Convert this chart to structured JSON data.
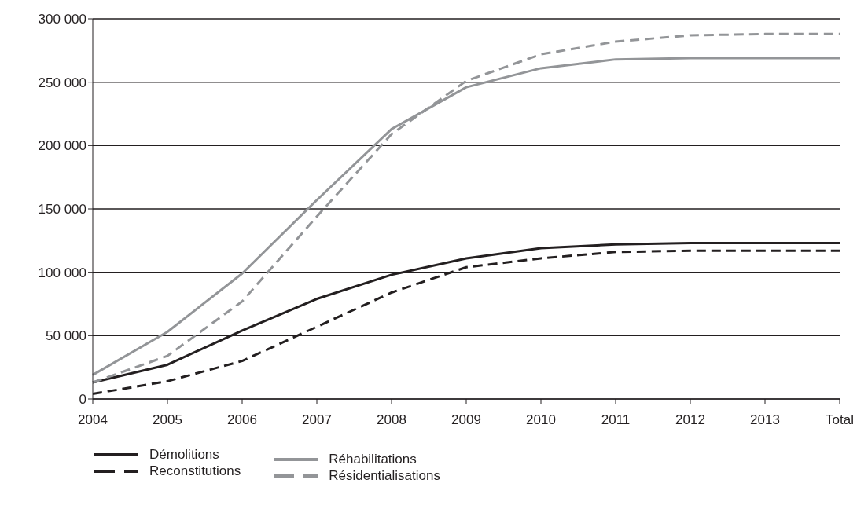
{
  "chart_data": {
    "type": "line",
    "categories": [
      "2004",
      "2005",
      "2006",
      "2007",
      "2008",
      "2009",
      "2010",
      "2011",
      "2012",
      "2013",
      "Total"
    ],
    "series": [
      {
        "name": "Démolitions",
        "color": "#231f20",
        "line_style": "solid",
        "values": [
          13000,
          27000,
          54000,
          79000,
          98000,
          111000,
          119000,
          122000,
          123000,
          123000,
          123000
        ]
      },
      {
        "name": "Reconstitutions",
        "color": "#231f20",
        "line_style": "dashed",
        "values": [
          4000,
          14000,
          30000,
          57000,
          84000,
          104000,
          111000,
          116000,
          117000,
          117000,
          117000
        ]
      },
      {
        "name": "Réhabilitations",
        "color": "#939598",
        "line_style": "solid",
        "values": [
          19000,
          53000,
          99000,
          157000,
          213000,
          246000,
          261000,
          268000,
          269000,
          269000,
          269000
        ]
      },
      {
        "name": "Résidentialisations",
        "color": "#939598",
        "line_style": "dashed",
        "values": [
          13000,
          34000,
          77000,
          144000,
          209000,
          251000,
          272000,
          282000,
          287000,
          288000,
          288000
        ]
      }
    ],
    "ylim": [
      0,
      300000
    ],
    "yticks": [
      0,
      {
        "value": 50000,
        "label": "50 000"
      },
      {
        "value": 100000,
        "label": "100 000"
      },
      {
        "value": 150000,
        "label": "150 000"
      },
      {
        "value": 200000,
        "label": "200 000"
      },
      {
        "value": 250000,
        "label": "250 000"
      },
      {
        "value": 300000,
        "label": "300 000"
      }
    ],
    "grid": "y",
    "legend": "bottom left",
    "marker": "none"
  }
}
